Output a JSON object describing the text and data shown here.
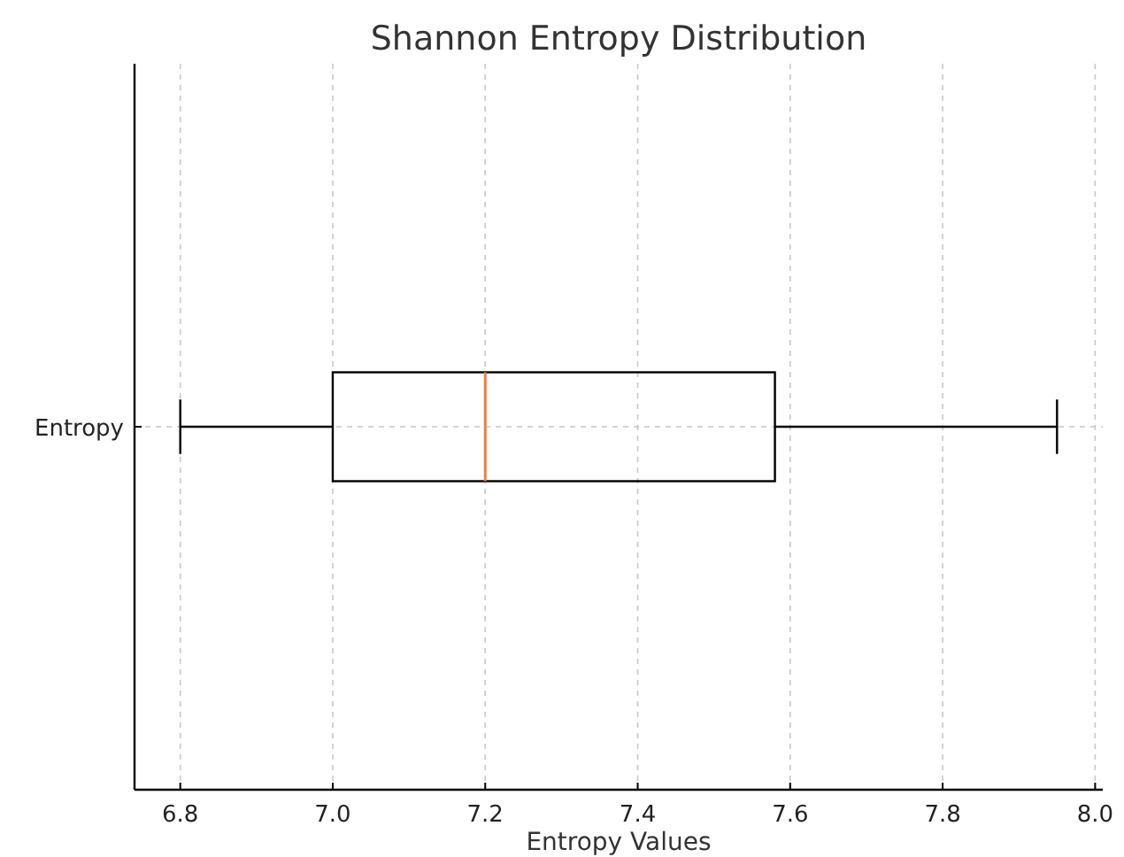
{
  "chart_data": {
    "type": "box",
    "title": "Shannon Entropy Distribution",
    "xlabel": "Entropy Values",
    "orientation": "horizontal",
    "categories": [
      "Entropy"
    ],
    "boxes": [
      {
        "low": 6.8,
        "q1": 7.0,
        "median": 7.2,
        "q3": 7.58,
        "high": 7.95
      }
    ],
    "color": "#000000",
    "xlim": [
      6.74,
      8.01
    ],
    "xticks": [
      {
        "value": 6.8,
        "label": "6.8"
      },
      {
        "value": 7.0,
        "label": "7.0"
      },
      {
        "value": 7.2,
        "label": "7.2"
      },
      {
        "value": 7.4,
        "label": "7.4"
      },
      {
        "value": 7.6,
        "label": "7.6"
      },
      {
        "value": 7.8,
        "label": "7.8"
      },
      {
        "value": 8.0,
        "label": "8.0"
      }
    ],
    "grid": true
  }
}
